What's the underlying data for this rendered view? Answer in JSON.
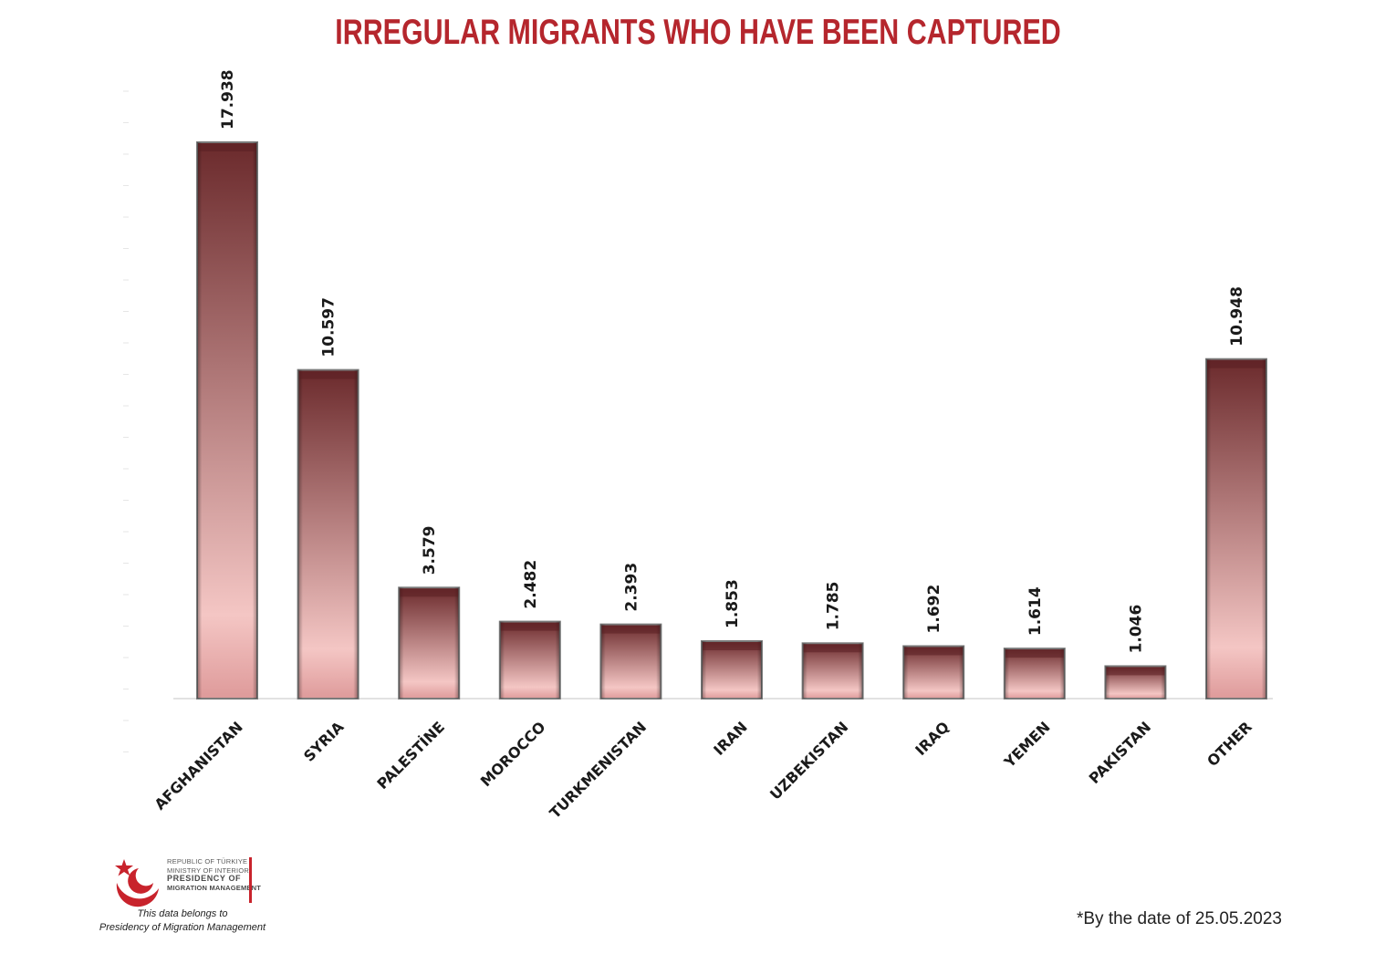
{
  "chart_data": {
    "type": "bar",
    "title": "IRREGULAR MIGRANTS WHO HAVE BEEN CAPTURED",
    "categories": [
      "AFGHANISTAN",
      "SYRIA",
      "PALESTİNE",
      "MOROCCO",
      "TURKMENISTAN",
      "IRAN",
      "UZBEKISTAN",
      "IRAQ",
      "YEMEN",
      "PAKISTAN",
      "OTHER"
    ],
    "values": [
      17938,
      10597,
      3579,
      2482,
      2393,
      1853,
      1785,
      1692,
      1614,
      1046,
      10948
    ],
    "value_labels": [
      "17.938",
      "10.597",
      "3.579",
      "2.482",
      "2.393",
      "1.853",
      "1.785",
      "1.692",
      "1.614",
      "1.046",
      "10.948"
    ],
    "ylim": [
      0,
      18000
    ],
    "grid": false,
    "xlabel": "",
    "ylabel": ""
  },
  "colors": {
    "title": "#b5262d",
    "bar_dark": "#6b2a2c",
    "bar_light": "#f4c6c4",
    "bar_bottom": "#de9a9a",
    "axis": "#d9d9d9"
  },
  "logo": {
    "line1": "REPUBLIC OF TÜRKIYE",
    "line2": "MINISTRY OF INTERIOR",
    "line3": "PRESIDENCY OF",
    "line4": "MIGRATION MANAGEMENT",
    "icon": "crescent-star-icon"
  },
  "owner_note": {
    "line1": "This data belongs to",
    "line2": "Presidency of Migration Management"
  },
  "date_note": "*By the date of 25.05.2023"
}
